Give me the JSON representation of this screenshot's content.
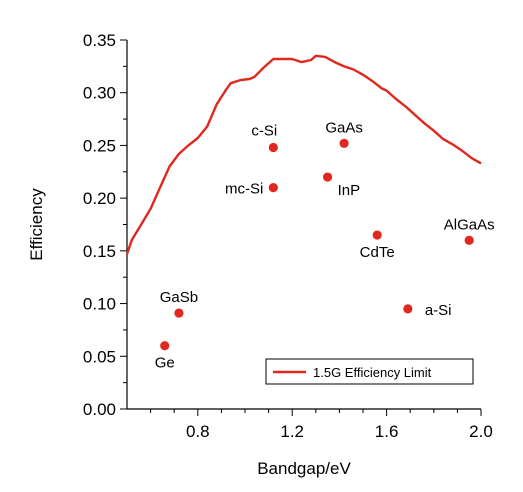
{
  "chart_data": {
    "type": "scatter",
    "xlabel": "Bandgap/eV",
    "ylabel": "Efficiency",
    "xlim": [
      0.5,
      2.0
    ],
    "ylim": [
      0.0,
      0.35
    ],
    "x_ticks": [
      0.8,
      1.2,
      1.6,
      2.0
    ],
    "x_tick_labels": [
      "0.8",
      "1.2",
      "1.6",
      "2.0"
    ],
    "y_ticks": [
      0.0,
      0.05,
      0.1,
      0.15,
      0.2,
      0.25,
      0.3,
      0.35
    ],
    "y_tick_labels": [
      "0.00",
      "0.05",
      "0.10",
      "0.15",
      "0.20",
      "0.25",
      "0.30",
      "0.35"
    ],
    "grid": false,
    "legend_position": "bottom-right",
    "color": "#e0281e",
    "limit_series": {
      "name": "1.5G Efficiency Limit",
      "x": [
        0.5,
        0.52,
        0.56,
        0.6,
        0.64,
        0.68,
        0.72,
        0.76,
        0.8,
        0.84,
        0.88,
        0.92,
        0.94,
        0.98,
        1.02,
        1.04,
        1.08,
        1.12,
        1.16,
        1.2,
        1.24,
        1.28,
        1.3,
        1.34,
        1.38,
        1.42,
        1.46,
        1.5,
        1.54,
        1.58,
        1.6,
        1.64,
        1.68,
        1.72,
        1.76,
        1.8,
        1.84,
        1.88,
        1.92,
        1.96,
        2.0
      ],
      "y": [
        0.147,
        0.16,
        0.175,
        0.19,
        0.21,
        0.23,
        0.242,
        0.25,
        0.257,
        0.268,
        0.289,
        0.303,
        0.309,
        0.312,
        0.313,
        0.315,
        0.324,
        0.332,
        0.332,
        0.332,
        0.329,
        0.331,
        0.335,
        0.334,
        0.329,
        0.325,
        0.322,
        0.317,
        0.311,
        0.304,
        0.302,
        0.294,
        0.287,
        0.279,
        0.271,
        0.264,
        0.256,
        0.251,
        0.245,
        0.238,
        0.233
      ]
    },
    "points": [
      {
        "name": "Ge",
        "x": 0.66,
        "y": 0.06,
        "label_pos": "below"
      },
      {
        "name": "GaSb",
        "x": 0.72,
        "y": 0.091,
        "label_pos": "above"
      },
      {
        "name": "c-Si",
        "x": 1.12,
        "y": 0.248,
        "label_pos": "above-left"
      },
      {
        "name": "mc-Si",
        "x": 1.12,
        "y": 0.21,
        "label_pos": "left"
      },
      {
        "name": "InP",
        "x": 1.35,
        "y": 0.22,
        "label_pos": "below-right"
      },
      {
        "name": "GaAs",
        "x": 1.42,
        "y": 0.252,
        "label_pos": "above"
      },
      {
        "name": "CdTe",
        "x": 1.56,
        "y": 0.165,
        "label_pos": "below"
      },
      {
        "name": "a-Si",
        "x": 1.69,
        "y": 0.095,
        "label_pos": "right"
      },
      {
        "name": "AlGaAs",
        "x": 1.95,
        "y": 0.16,
        "label_pos": "above"
      }
    ]
  }
}
